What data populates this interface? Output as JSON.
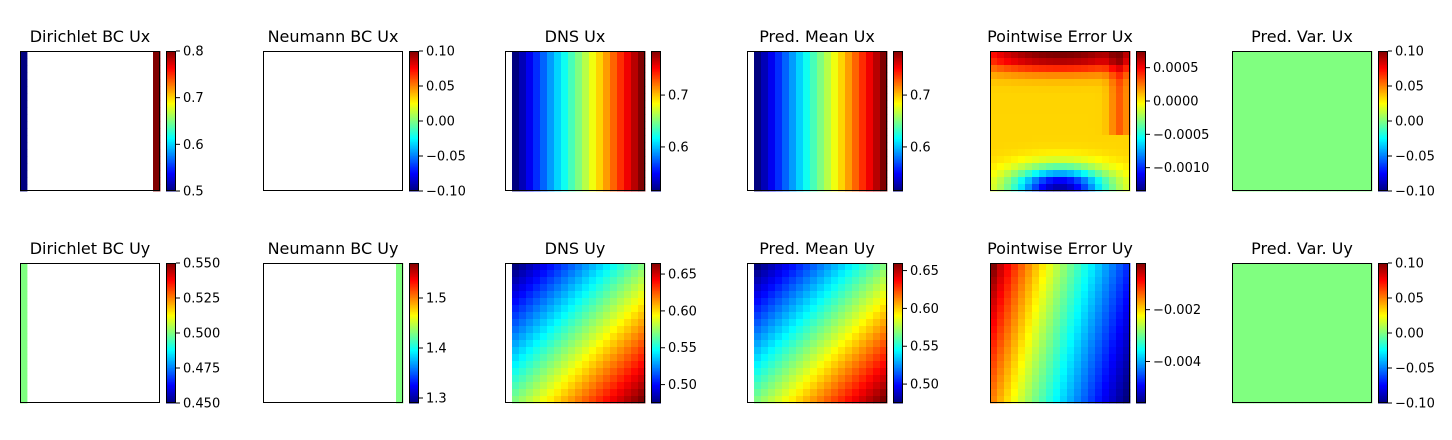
{
  "colormap": "jet",
  "chart_data": [
    {
      "type": "heatmap",
      "title": "Dirichlet BC Ux",
      "colorbar": {
        "min": 0.5,
        "max": 0.8,
        "ticks": [
          0.5,
          0.6,
          0.7,
          0.8
        ],
        "labels": [
          "0.5",
          "0.6",
          "0.7",
          "0.8"
        ]
      },
      "field": "dirichlet_x",
      "values": {
        "left_edge": 0.5,
        "right_edge": 0.8,
        "interior": "masked"
      }
    },
    {
      "type": "heatmap",
      "title": "Neumann BC Ux",
      "colorbar": {
        "min": -0.1,
        "max": 0.1,
        "ticks": [
          -0.1,
          -0.05,
          0,
          0.05,
          0.1
        ],
        "labels": [
          "−0.10",
          "−0.05",
          "0.00",
          "0.05",
          "0.10"
        ]
      },
      "field": "empty",
      "values": {
        "interior": "masked"
      }
    },
    {
      "type": "heatmap",
      "title": "DNS Ux",
      "colorbar": {
        "min": 0.515,
        "max": 0.785,
        "ticks": [
          0.6,
          0.7
        ],
        "labels": [
          "0.6",
          "0.7"
        ]
      },
      "field": "ux",
      "values": {
        "x_range": [
          0.515,
          0.785
        ],
        "profile": "linear increase from left to right",
        "constant_along_y": true
      }
    },
    {
      "type": "heatmap",
      "title": "Pred. Mean Ux",
      "colorbar": {
        "min": 0.515,
        "max": 0.785,
        "ticks": [
          0.6,
          0.7
        ],
        "labels": [
          "0.6",
          "0.7"
        ]
      },
      "field": "ux",
      "values": {
        "x_range": [
          0.515,
          0.785
        ],
        "profile": "linear increase from left to right",
        "constant_along_y": true
      }
    },
    {
      "type": "heatmap",
      "title": "Pointwise Error Ux",
      "colorbar": {
        "min": -0.00135,
        "max": 0.00075,
        "ticks": [
          -0.001,
          -0.0005,
          0,
          0.0005
        ],
        "labels": [
          "−0.0010",
          "−0.0005",
          "0.0000",
          "0.0005"
        ]
      },
      "field": "err_x",
      "values": {
        "top_center": 0.0007,
        "bottom_center": -0.0013,
        "mid": 0.0
      }
    },
    {
      "type": "heatmap",
      "title": "Pred. Var. Ux",
      "colorbar": {
        "min": -0.1,
        "max": 0.1,
        "ticks": [
          -0.1,
          -0.05,
          0,
          0.05,
          0.1
        ],
        "labels": [
          "−0.10",
          "−0.05",
          "0.00",
          "0.05",
          "0.10"
        ]
      },
      "field": "var",
      "values": {
        "uniform": 0.0
      }
    },
    {
      "type": "heatmap",
      "title": "Dirichlet BC Uy",
      "colorbar": {
        "min": 0.45,
        "max": 0.55,
        "ticks": [
          0.45,
          0.475,
          0.5,
          0.525,
          0.55
        ],
        "labels": [
          "0.450",
          "0.475",
          "0.500",
          "0.525",
          "0.550"
        ]
      },
      "field": "dirichlet_y",
      "values": {
        "left_edge": 0.5,
        "interior": "masked"
      }
    },
    {
      "type": "heatmap",
      "title": "Neumann BC Uy",
      "colorbar": {
        "min": 1.29,
        "max": 1.57,
        "ticks": [
          1.3,
          1.4,
          1.5
        ],
        "labels": [
          "1.3",
          "1.4",
          "1.5"
        ]
      },
      "field": "neumann_y",
      "values": {
        "right_edge": 1.43,
        "interior": "masked"
      }
    },
    {
      "type": "heatmap",
      "title": "DNS Uy",
      "colorbar": {
        "min": 0.475,
        "max": 0.665,
        "ticks": [
          0.5,
          0.55,
          0.6,
          0.65
        ],
        "labels": [
          "0.50",
          "0.55",
          "0.60",
          "0.65"
        ]
      },
      "field": "uy",
      "values": {
        "top_left": 0.475,
        "bottom_right": 0.665,
        "gradient": "diagonal"
      }
    },
    {
      "type": "heatmap",
      "title": "Pred. Mean Uy",
      "colorbar": {
        "min": 0.475,
        "max": 0.66,
        "ticks": [
          0.5,
          0.55,
          0.6,
          0.65
        ],
        "labels": [
          "0.50",
          "0.55",
          "0.60",
          "0.65"
        ]
      },
      "field": "uy",
      "values": {
        "top_left": 0.475,
        "bottom_right": 0.66,
        "gradient": "diagonal"
      }
    },
    {
      "type": "heatmap",
      "title": "Pointwise Error Uy",
      "colorbar": {
        "min": -0.0056,
        "max": -0.0002,
        "ticks": [
          -0.004,
          -0.002
        ],
        "labels": [
          "−0.004",
          "−0.002"
        ]
      },
      "field": "err_y",
      "values": {
        "left": -0.0002,
        "right": -0.0056,
        "gradient": "tilted horizontal"
      }
    },
    {
      "type": "heatmap",
      "title": "Pred. Var. Uy",
      "colorbar": {
        "min": -0.1,
        "max": 0.1,
        "ticks": [
          -0.1,
          -0.05,
          0,
          0.05,
          0.1
        ],
        "labels": [
          "−0.10",
          "−0.05",
          "0.00",
          "0.05",
          "0.10"
        ]
      },
      "field": "var",
      "values": {
        "uniform": 0.0
      }
    }
  ]
}
